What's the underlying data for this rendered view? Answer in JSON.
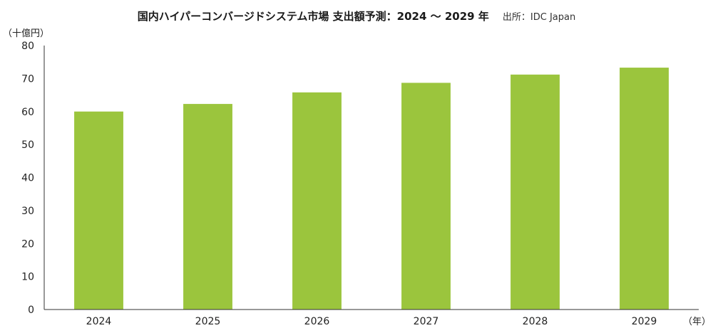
{
  "header": {
    "title": "国内ハイパーコンバージドシステム市場 支出額予測：2024 〜 2029 年",
    "source": "出所：IDC Japan"
  },
  "chart_data": {
    "type": "bar",
    "title": "国内ハイパーコンバージドシステム市場 支出額予測：2024 〜 2029 年",
    "ylabel": "（十億円）",
    "xlabel": "（年）",
    "categories": [
      "2024",
      "2025",
      "2026",
      "2027",
      "2028",
      "2029"
    ],
    "values": [
      60,
      62.3,
      65.8,
      68.7,
      71.2,
      73.3
    ],
    "ylim": [
      0,
      80
    ],
    "yticks": [
      0,
      10,
      20,
      30,
      40,
      50,
      60,
      70,
      80
    ],
    "grid": false,
    "bar_color": "#9bc53d"
  }
}
